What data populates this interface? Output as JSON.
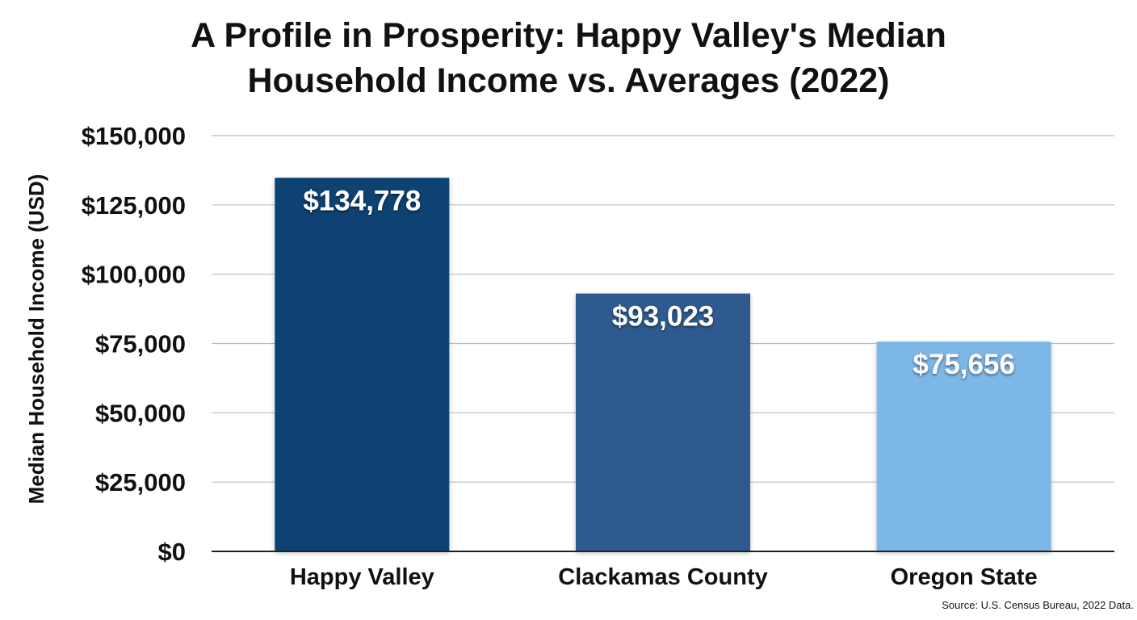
{
  "chart_data": {
    "type": "bar",
    "title_lines": [
      "A Profile in Prosperity: Happy Valley's Median",
      "Household Income vs. Averages (2022)"
    ],
    "xlabel": "",
    "ylabel": "Median Household Income (USD)",
    "categories": [
      "Happy Valley",
      "Clackamas County",
      "Oregon State"
    ],
    "values": [
      134778,
      93023,
      75656
    ],
    "value_labels": [
      "$134,778",
      "$93,023",
      "$75,656"
    ],
    "bar_colors": [
      "#0b4372",
      "#2f5a8f",
      "#7db7e8"
    ],
    "ylim": [
      0,
      150000
    ],
    "yticks": [
      0,
      25000,
      50000,
      75000,
      100000,
      125000,
      150000
    ],
    "ytick_labels": [
      "$0",
      "$25,000",
      "$50,000",
      "$75,000",
      "$100,000",
      "$125,000",
      "$150,000"
    ],
    "grid": "horizontal",
    "legend": "none",
    "source": "Source: U.S. Census Bureau, 2022 Data."
  }
}
